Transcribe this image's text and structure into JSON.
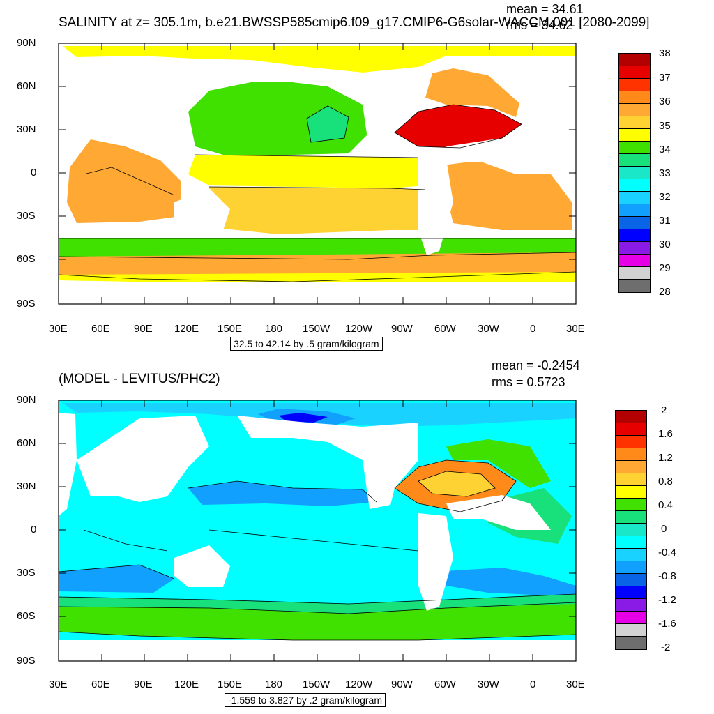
{
  "panels": [
    {
      "title": "SALINITY at z= 305.1m, b.e21.BWSSP585cmip6.f09_g17.CMIP6-G6solar-WACCM.001 [2080-2099]",
      "mean": "mean = 34.61",
      "rms": "rms = 34.62",
      "contour_info": "32.5 to 42.14 by .5 gram/kilogram",
      "lat_ticks": [
        "90N",
        "60N",
        "30N",
        "0",
        "30S",
        "60S",
        "90S"
      ],
      "lon_ticks": [
        "30E",
        "60E",
        "90E",
        "120E",
        "150E",
        "180",
        "150W",
        "120W",
        "90W",
        "60W",
        "30W",
        "0",
        "30E"
      ],
      "colorbar_labels": [
        "38",
        "37",
        "36",
        "35",
        "34",
        "33",
        "32",
        "31",
        "30",
        "29",
        "28"
      ],
      "colorbar_colors": [
        "#b30000",
        "#e60000",
        "#ff3300",
        "#ff8a1a",
        "#ffa833",
        "#ffd233",
        "#ffff00",
        "#40e000",
        "#18e07a",
        "#1ae6c8",
        "#00ffff",
        "#1ad2ff",
        "#12a0ff",
        "#0a64e6",
        "#0000ff",
        "#8a1ae6",
        "#e600e6",
        "#d2d2d2",
        "#6e6e6e"
      ]
    },
    {
      "title": "(MODEL - LEVITUS/PHC2)",
      "mean": "mean = -0.2454",
      "rms": "rms = 0.5723",
      "contour_info": "-1.559 to 3.827 by .2 gram/kilogram",
      "lat_ticks": [
        "90N",
        "60N",
        "30N",
        "0",
        "30S",
        "60S",
        "90S"
      ],
      "lon_ticks": [
        "30E",
        "60E",
        "90E",
        "120E",
        "150E",
        "180",
        "150W",
        "120W",
        "90W",
        "60W",
        "30W",
        "0",
        "30E"
      ],
      "colorbar_labels": [
        "2",
        "1.6",
        "1.2",
        "0.8",
        "0.4",
        "0",
        "-0.4",
        "-0.8",
        "-1.2",
        "-1.6",
        "-2"
      ],
      "colorbar_colors": [
        "#b30000",
        "#e60000",
        "#ff3300",
        "#ff8a1a",
        "#ffa833",
        "#ffd233",
        "#ffff00",
        "#40e000",
        "#18e07a",
        "#1ae6c8",
        "#00ffff",
        "#1ad2ff",
        "#12a0ff",
        "#0a64e6",
        "#0000ff",
        "#8a1ae6",
        "#e600e6",
        "#d2d2d2",
        "#6e6e6e"
      ]
    }
  ],
  "colors": {
    "land": "#ffffff",
    "frame": "#000000"
  }
}
